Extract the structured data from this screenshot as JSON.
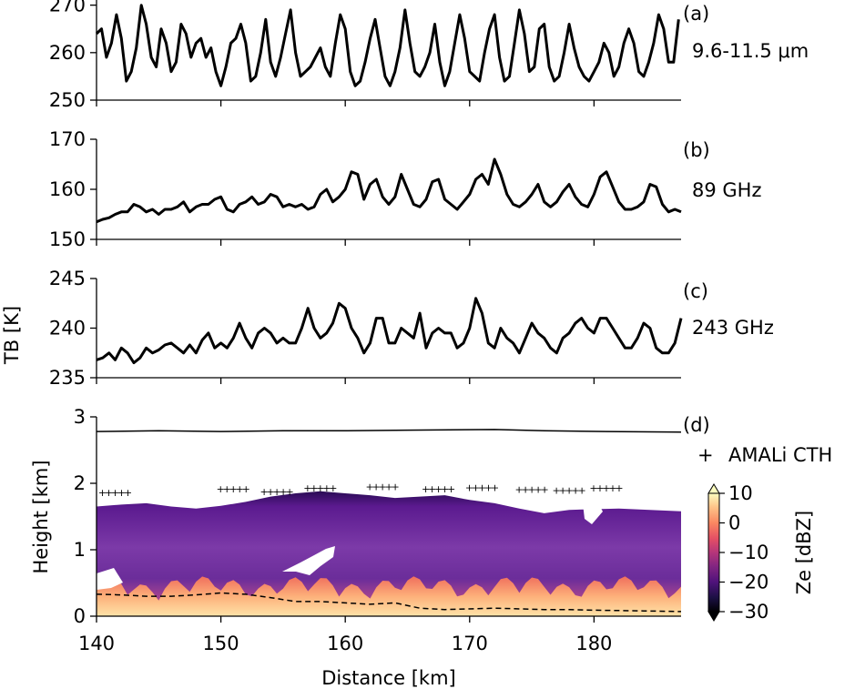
{
  "chart_data": [
    {
      "type": "line",
      "panel_label": "(a)",
      "annotation": "9.6-11.5 μm",
      "ylabel": "",
      "ylim": [
        250,
        273
      ],
      "yticks": [
        250,
        260,
        270
      ],
      "xlim": [
        140,
        187
      ],
      "series": [
        {
          "x": [
            140.0,
            140.4,
            140.8,
            141.2,
            141.6,
            142.0,
            142.4,
            142.8,
            143.2,
            143.6,
            144.0,
            144.4,
            144.8,
            145.2,
            145.6,
            146.0,
            146.4,
            146.8,
            147.2,
            147.6,
            148.0,
            148.4,
            148.8,
            149.2,
            149.6,
            150.0,
            150.4,
            150.8,
            151.2,
            151.6,
            152.0,
            152.4,
            152.8,
            153.2,
            153.6,
            154.0,
            154.4,
            154.8,
            155.2,
            155.6,
            156.0,
            156.4,
            156.8,
            157.2,
            157.6,
            158.0,
            158.4,
            158.8,
            159.2,
            159.6,
            160.0,
            160.4,
            160.8,
            161.2,
            161.6,
            162.0,
            162.4,
            162.8,
            163.2,
            163.6,
            164.0,
            164.4,
            164.8,
            165.2,
            165.6,
            166.0,
            166.4,
            166.8,
            167.2,
            167.6,
            168.0,
            168.4,
            168.8,
            169.2,
            169.6,
            170.0,
            170.4,
            170.8,
            171.2,
            171.6,
            172.0,
            172.4,
            172.8,
            173.2,
            173.6,
            174.0,
            174.4,
            174.8,
            175.2,
            175.6,
            176.0,
            176.4,
            176.8,
            177.2,
            177.6,
            178.0,
            178.4,
            178.8,
            179.2,
            179.6,
            180.0,
            180.4,
            180.8,
            181.2,
            181.6,
            182.0,
            182.4,
            182.8,
            183.2,
            183.6,
            184.0,
            184.4,
            184.8,
            185.2,
            185.6,
            186.0,
            186.4,
            186.8
          ],
          "y": [
            264,
            265,
            259,
            262,
            268,
            263,
            254,
            256,
            261,
            270,
            266,
            259,
            257,
            265,
            262,
            256,
            258,
            266,
            264,
            259,
            262,
            263,
            259,
            261,
            256,
            253,
            257,
            262,
            263,
            266,
            262,
            254,
            255,
            260,
            267,
            258,
            255,
            259,
            264,
            269,
            260,
            255,
            256,
            257,
            259,
            261,
            257,
            255,
            262,
            268,
            265,
            256,
            253,
            254,
            258,
            263,
            267,
            261,
            255,
            253,
            256,
            261,
            269,
            262,
            256,
            255,
            257,
            260,
            266,
            258,
            253,
            256,
            262,
            268,
            263,
            256,
            255,
            254,
            260,
            265,
            268,
            259,
            254,
            255,
            262,
            269,
            264,
            256,
            257,
            265,
            266,
            257,
            254,
            255,
            260,
            266,
            261,
            257,
            255,
            254,
            256,
            258,
            262,
            260,
            255,
            257,
            262,
            265,
            262,
            256,
            255,
            258,
            262,
            268,
            265,
            258,
            258,
            267
          ]
        }
      ]
    },
    {
      "type": "line",
      "panel_label": "(b)",
      "annotation": "89 GHz",
      "ylabel": "",
      "ylim": [
        150,
        170
      ],
      "yticks": [
        150,
        160,
        170
      ],
      "xlim": [
        140,
        187
      ],
      "series": [
        {
          "x": [
            140.0,
            140.5,
            141.0,
            141.5,
            142.0,
            142.5,
            143.0,
            143.5,
            144.0,
            144.5,
            145.0,
            145.5,
            146.0,
            146.5,
            147.0,
            147.5,
            148.0,
            148.5,
            149.0,
            149.5,
            150.0,
            150.5,
            151.0,
            151.5,
            152.0,
            152.5,
            153.0,
            153.5,
            154.0,
            154.5,
            155.0,
            155.5,
            156.0,
            156.5,
            157.0,
            157.5,
            158.0,
            158.5,
            159.0,
            159.5,
            160.0,
            160.5,
            161.0,
            161.5,
            162.0,
            162.5,
            163.0,
            163.5,
            164.0,
            164.5,
            165.0,
            165.5,
            166.0,
            166.5,
            167.0,
            167.5,
            168.0,
            168.5,
            169.0,
            169.5,
            170.0,
            170.5,
            171.0,
            171.5,
            172.0,
            172.5,
            173.0,
            173.5,
            174.0,
            174.5,
            175.0,
            175.5,
            176.0,
            176.5,
            177.0,
            177.5,
            178.0,
            178.5,
            179.0,
            179.5,
            180.0,
            180.5,
            181.0,
            181.5,
            182.0,
            182.5,
            183.0,
            183.5,
            184.0,
            184.5,
            185.0,
            185.5,
            186.0,
            186.5,
            187.0
          ],
          "y": [
            153.5,
            154.0,
            154.3,
            155.0,
            155.5,
            155.5,
            157.0,
            156.5,
            155.5,
            156.0,
            155.0,
            156.0,
            156.0,
            156.5,
            157.5,
            155.5,
            156.5,
            157.0,
            157.0,
            158.0,
            158.5,
            156.0,
            155.5,
            157.0,
            157.5,
            158.5,
            157.0,
            157.5,
            159.0,
            158.5,
            156.5,
            157.0,
            156.5,
            157.0,
            156.0,
            156.5,
            159.0,
            160.0,
            157.5,
            158.5,
            160.0,
            163.5,
            163.0,
            158.0,
            161.0,
            162.0,
            158.5,
            157.0,
            158.5,
            163.0,
            160.0,
            157.0,
            156.5,
            158.0,
            161.5,
            162.0,
            158.0,
            157.0,
            156.0,
            157.5,
            159.0,
            162.0,
            163.0,
            161.0,
            166.0,
            163.0,
            159.0,
            157.0,
            156.5,
            157.5,
            159.0,
            161.0,
            157.5,
            156.5,
            157.5,
            159.5,
            161.0,
            158.5,
            157.0,
            156.5,
            159.0,
            162.5,
            163.5,
            160.5,
            157.5,
            156.0,
            156.0,
            156.5,
            157.5,
            161.0,
            160.5,
            157.0,
            155.5,
            156.0,
            155.5
          ]
        }
      ]
    },
    {
      "type": "line",
      "panel_label": "(c)",
      "annotation": "243 GHz",
      "ylabel": "",
      "ylim": [
        235,
        245
      ],
      "yticks": [
        235,
        240,
        245
      ],
      "xlim": [
        140,
        187
      ],
      "series": [
        {
          "x": [
            140.0,
            140.5,
            141.0,
            141.5,
            142.0,
            142.5,
            143.0,
            143.5,
            144.0,
            144.5,
            145.0,
            145.5,
            146.0,
            146.5,
            147.0,
            147.5,
            148.0,
            148.5,
            149.0,
            149.5,
            150.0,
            150.5,
            151.0,
            151.5,
            152.0,
            152.5,
            153.0,
            153.5,
            154.0,
            154.5,
            155.0,
            155.5,
            156.0,
            156.5,
            157.0,
            157.5,
            158.0,
            158.5,
            159.0,
            159.5,
            160.0,
            160.5,
            161.0,
            161.5,
            162.0,
            162.5,
            163.0,
            163.5,
            164.0,
            164.5,
            165.0,
            165.5,
            166.0,
            166.5,
            167.0,
            167.5,
            168.0,
            168.5,
            169.0,
            169.5,
            170.0,
            170.5,
            171.0,
            171.5,
            172.0,
            172.5,
            173.0,
            173.5,
            174.0,
            174.5,
            175.0,
            175.5,
            176.0,
            176.5,
            177.0,
            177.5,
            178.0,
            178.5,
            179.0,
            179.5,
            180.0,
            180.5,
            181.0,
            181.5,
            182.0,
            182.5,
            183.0,
            183.5,
            184.0,
            184.5,
            185.0,
            185.5,
            186.0,
            186.5,
            187.0
          ],
          "y": [
            236.8,
            237.0,
            237.5,
            236.8,
            238.0,
            237.5,
            236.5,
            237.0,
            238.0,
            237.5,
            237.8,
            238.3,
            238.5,
            238.0,
            237.5,
            238.3,
            237.5,
            238.8,
            239.5,
            238.0,
            238.5,
            238.0,
            239.0,
            240.5,
            239.0,
            238.0,
            239.5,
            240.0,
            239.5,
            238.5,
            239.0,
            238.5,
            238.5,
            240.0,
            242.0,
            240.0,
            239.0,
            239.5,
            240.5,
            242.5,
            242.0,
            240.0,
            239.0,
            237.5,
            238.5,
            241.0,
            241.0,
            238.5,
            238.5,
            240.0,
            239.5,
            239.0,
            241.5,
            238.0,
            239.5,
            240.0,
            239.5,
            239.5,
            238.0,
            238.5,
            240.0,
            243.0,
            241.5,
            238.5,
            238.0,
            240.0,
            239.0,
            238.5,
            237.5,
            239.0,
            240.5,
            239.5,
            239.0,
            238.0,
            237.5,
            239.0,
            239.5,
            240.5,
            241.0,
            240.0,
            239.5,
            241.0,
            241.0,
            240.0,
            239.0,
            238.0,
            238.0,
            239.0,
            240.5,
            240.0,
            238.0,
            237.5,
            237.5,
            238.5,
            241.0
          ]
        }
      ]
    },
    {
      "type": "heatmap",
      "panel_label": "(d)",
      "ylabel": "Height [km]",
      "xlabel": "Distance [km]",
      "ylim": [
        0,
        3
      ],
      "yticks": [
        0,
        1,
        2,
        3
      ],
      "xlim": [
        140,
        187
      ],
      "xticks": [
        140,
        150,
        160,
        170,
        180
      ],
      "legend": {
        "marker": "+",
        "label": "AMALi CTH",
        "placement": "right"
      },
      "colorbar": {
        "label": "Ze [dBZ]",
        "range": [
          -30,
          10
        ],
        "ticks": [
          -30,
          -20,
          -10,
          0,
          10
        ],
        "extend": "both",
        "colormap": "magma"
      },
      "cloud_top_line_km": [
        2.78,
        2.79,
        2.78,
        2.79,
        2.79,
        2.8,
        2.81,
        2.79,
        2.78,
        2.77
      ],
      "cloud_top_line_x": [
        140,
        145,
        150,
        155,
        160,
        165,
        172,
        176,
        181,
        187
      ],
      "radar_echo_top_km": [
        1.65,
        1.68,
        1.7,
        1.65,
        1.62,
        1.66,
        1.72,
        1.8,
        1.85,
        1.88,
        1.85,
        1.82,
        1.78,
        1.8,
        1.82,
        1.75,
        1.7,
        1.62,
        1.55,
        1.6,
        1.62,
        1.58
      ],
      "radar_echo_top_x": [
        140,
        142,
        144,
        146,
        148,
        150,
        152,
        154,
        156,
        158,
        160,
        162,
        164,
        166,
        168,
        170,
        172,
        174,
        176,
        178,
        182,
        187
      ],
      "dashed_line_km": [
        0.33,
        0.32,
        0.3,
        0.3,
        0.32,
        0.35,
        0.33,
        0.28,
        0.22,
        0.22,
        0.2,
        0.18,
        0.2,
        0.12,
        0.1,
        0.12,
        0.1,
        0.1,
        0.09,
        0.08,
        0.07
      ],
      "dashed_line_x": [
        140,
        142,
        144,
        146,
        148,
        150,
        152,
        154,
        156,
        158,
        160,
        162,
        164,
        166,
        168,
        172,
        176,
        178,
        180,
        184,
        187
      ],
      "amali_cth_km": [
        1.86,
        1.92,
        1.88,
        1.93,
        1.95,
        1.92,
        1.94,
        1.91,
        1.9,
        1.93
      ],
      "amali_cth_x": [
        141.5,
        151.0,
        154.5,
        158.0,
        163.0,
        167.5,
        171.0,
        175.0,
        178.0,
        181.0
      ]
    }
  ],
  "shared": {
    "ylabel_tb": "TB [K]"
  },
  "colors": {
    "line": "#000000",
    "dashed": "#000000",
    "cth_marker": "#777777"
  }
}
